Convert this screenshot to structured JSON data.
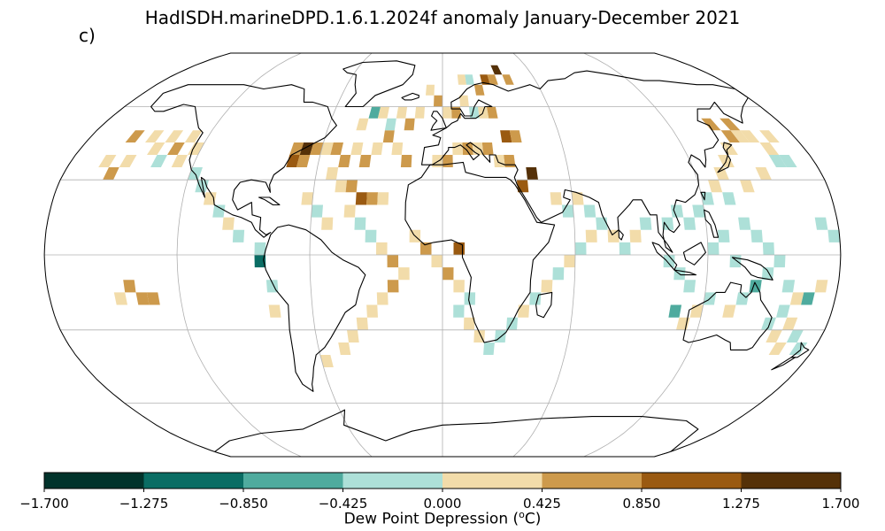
{
  "title": "HadISDH.marineDPD.1.6.1.2024f anomaly January-December 2021",
  "panel_label": "c)",
  "colorbar": {
    "label": "Dew Point Depression (",
    "label_sup": "o",
    "label_suffix": "C)",
    "ticks": [
      "−1.700",
      "−1.275",
      "−0.850",
      "−0.425",
      "0.000",
      "0.425",
      "0.850",
      "1.275",
      "1.700"
    ],
    "colors": [
      "#01332b",
      "#0a6d64",
      "#4fab9e",
      "#ade0d8",
      "#f2dcaa",
      "#cd9a4c",
      "#9a5a11",
      "#553108"
    ]
  },
  "chart_data": {
    "type": "heatmap",
    "projection": "robinson",
    "cell_size_deg": 5,
    "gridlines": {
      "lon_step": 60,
      "lat_step": 30
    },
    "color_bins": [
      -1.7,
      -1.275,
      -0.85,
      -0.425,
      0.0,
      0.425,
      0.85,
      1.275,
      1.7
    ],
    "cells": [
      [
        -160,
        45,
        0.6
      ],
      [
        -150,
        45,
        0.3
      ],
      [
        -140,
        45,
        0.3
      ],
      [
        -130,
        45,
        0.3
      ],
      [
        -125,
        40,
        0.3
      ],
      [
        -135,
        40,
        0.6
      ],
      [
        -145,
        40,
        0.3
      ],
      [
        -155,
        35,
        0.2
      ],
      [
        -165,
        35,
        0.2
      ],
      [
        -140,
        35,
        -0.2
      ],
      [
        -130,
        35,
        0.3
      ],
      [
        -120,
        30,
        -0.2
      ],
      [
        -115,
        25,
        -0.2
      ],
      [
        -110,
        20,
        0.3
      ],
      [
        -105,
        15,
        -0.2
      ],
      [
        -100,
        10,
        0.3
      ],
      [
        -95,
        5,
        -0.2
      ],
      [
        -85,
        0,
        -0.2
      ],
      [
        -85,
        -5,
        -1.2
      ],
      [
        -80,
        -15,
        -0.2
      ],
      [
        -80,
        -25,
        0.3
      ],
      [
        -145,
        -15,
        0.6
      ],
      [
        -140,
        -20,
        0.6
      ],
      [
        -135,
        -20,
        0.6
      ],
      [
        -150,
        -20,
        0.3
      ],
      [
        -160,
        30,
        0.6
      ],
      [
        -75,
        40,
        0.6
      ],
      [
        -70,
        40,
        1.3
      ],
      [
        -65,
        40,
        0.6
      ],
      [
        -75,
        35,
        1.0
      ],
      [
        -70,
        35,
        0.6
      ],
      [
        -60,
        40,
        0.3
      ],
      [
        -55,
        40,
        0.6
      ],
      [
        -50,
        35,
        0.6
      ],
      [
        -45,
        40,
        0.3
      ],
      [
        -40,
        35,
        0.6
      ],
      [
        -35,
        40,
        0.3
      ],
      [
        -30,
        45,
        0.6
      ],
      [
        -25,
        40,
        0.3
      ],
      [
        -20,
        35,
        0.6
      ],
      [
        -45,
        50,
        0.3
      ],
      [
        -40,
        55,
        -0.6
      ],
      [
        -35,
        55,
        0.3
      ],
      [
        -30,
        50,
        -0.2
      ],
      [
        -25,
        55,
        0.3
      ],
      [
        -20,
        50,
        0.6
      ],
      [
        -15,
        55,
        0.3
      ],
      [
        -55,
        30,
        0.3
      ],
      [
        -50,
        25,
        0.3
      ],
      [
        -45,
        25,
        0.6
      ],
      [
        -40,
        20,
        1.0
      ],
      [
        -35,
        20,
        0.6
      ],
      [
        -30,
        20,
        0.3
      ],
      [
        -45,
        15,
        0.3
      ],
      [
        -65,
        20,
        0.3
      ],
      [
        -60,
        15,
        -0.2
      ],
      [
        -55,
        10,
        0.3
      ],
      [
        -40,
        10,
        -0.2
      ],
      [
        -35,
        5,
        -0.2
      ],
      [
        -30,
        0,
        0.3
      ],
      [
        -25,
        -5,
        0.6
      ],
      [
        -20,
        -10,
        0.3
      ],
      [
        -25,
        -15,
        0.6
      ],
      [
        -30,
        -20,
        0.3
      ],
      [
        -35,
        -25,
        0.3
      ],
      [
        -40,
        -30,
        0.3
      ],
      [
        -45,
        -35,
        0.3
      ],
      [
        -50,
        -40,
        0.3
      ],
      [
        -60,
        -45,
        0.3
      ],
      [
        -15,
        5,
        0.3
      ],
      [
        -10,
        0,
        0.6
      ],
      [
        -5,
        -5,
        0.3
      ],
      [
        0,
        -10,
        0.6
      ],
      [
        5,
        0,
        1.2
      ],
      [
        5,
        -15,
        0.3
      ],
      [
        10,
        -20,
        -0.2
      ],
      [
        10,
        -30,
        0.3
      ],
      [
        5,
        -25,
        -0.2
      ],
      [
        15,
        -35,
        0.3
      ],
      [
        20,
        -40,
        -0.2
      ],
      [
        25,
        -35,
        -0.2
      ],
      [
        30,
        -30,
        -0.2
      ],
      [
        35,
        -25,
        0.3
      ],
      [
        40,
        -20,
        -0.2
      ],
      [
        45,
        -15,
        0.3
      ],
      [
        50,
        -10,
        -0.2
      ],
      [
        55,
        -5,
        0.3
      ],
      [
        60,
        0,
        -0.2
      ],
      [
        65,
        5,
        0.3
      ],
      [
        70,
        10,
        -0.2
      ],
      [
        75,
        5,
        0.3
      ],
      [
        80,
        0,
        -0.2
      ],
      [
        85,
        5,
        0.3
      ],
      [
        90,
        10,
        -0.2
      ],
      [
        55,
        15,
        -0.2
      ],
      [
        60,
        20,
        0.3
      ],
      [
        65,
        15,
        -0.2
      ],
      [
        50,
        20,
        0.3
      ],
      [
        40,
        30,
        1.6
      ],
      [
        35,
        25,
        1.2
      ],
      [
        30,
        35,
        0.6
      ],
      [
        25,
        35,
        0.3
      ],
      [
        20,
        40,
        0.6
      ],
      [
        15,
        40,
        0.3
      ],
      [
        10,
        40,
        0.6
      ],
      [
        5,
        40,
        0.3
      ],
      [
        0,
        35,
        0.6
      ],
      [
        -5,
        35,
        0.3
      ],
      [
        30,
        45,
        1.0
      ],
      [
        35,
        45,
        0.6
      ],
      [
        25,
        55,
        0.6
      ],
      [
        20,
        55,
        0.3
      ],
      [
        15,
        55,
        -0.2
      ],
      [
        5,
        55,
        0.6
      ],
      [
        0,
        55,
        0.3
      ],
      [
        10,
        60,
        0.3
      ],
      [
        20,
        65,
        0.6
      ],
      [
        25,
        70,
        1.0
      ],
      [
        30,
        70,
        0.6
      ],
      [
        15,
        70,
        -0.2
      ],
      [
        10,
        70,
        0.3
      ],
      [
        -10,
        65,
        0.3
      ],
      [
        -5,
        60,
        0.6
      ],
      [
        35,
        75,
        1.6
      ],
      [
        40,
        70,
        0.6
      ],
      [
        100,
        10,
        -0.2
      ],
      [
        105,
        15,
        -0.2
      ],
      [
        110,
        10,
        -0.2
      ],
      [
        115,
        15,
        -0.2
      ],
      [
        120,
        20,
        -0.2
      ],
      [
        125,
        25,
        0.3
      ],
      [
        130,
        30,
        0.3
      ],
      [
        135,
        35,
        0.3
      ],
      [
        140,
        40,
        0.3
      ],
      [
        145,
        45,
        0.6
      ],
      [
        150,
        45,
        0.3
      ],
      [
        155,
        45,
        0.3
      ],
      [
        160,
        40,
        0.3
      ],
      [
        165,
        45,
        0.3
      ],
      [
        150,
        50,
        0.6
      ],
      [
        140,
        50,
        0.6
      ],
      [
        160,
        35,
        -0.2
      ],
      [
        165,
        35,
        -0.2
      ],
      [
        150,
        30,
        0.3
      ],
      [
        140,
        25,
        0.3
      ],
      [
        130,
        20,
        -0.2
      ],
      [
        135,
        10,
        -0.2
      ],
      [
        140,
        5,
        -0.2
      ],
      [
        145,
        0,
        -0.2
      ],
      [
        150,
        -5,
        -0.2
      ],
      [
        145,
        -10,
        -0.2
      ],
      [
        140,
        -15,
        -0.6
      ],
      [
        135,
        -20,
        -0.2
      ],
      [
        130,
        -25,
        0.3
      ],
      [
        120,
        -20,
        -0.2
      ],
      [
        115,
        -25,
        0.3
      ],
      [
        110,
        -15,
        -0.2
      ],
      [
        105,
        -10,
        -0.2
      ],
      [
        100,
        -5,
        -0.2
      ],
      [
        120,
        0,
        -0.2
      ],
      [
        125,
        5,
        -0.2
      ],
      [
        130,
        -5,
        -0.2
      ],
      [
        155,
        -15,
        -0.2
      ],
      [
        160,
        -20,
        0.3
      ],
      [
        155,
        -25,
        -0.2
      ],
      [
        150,
        -30,
        -0.2
      ],
      [
        160,
        -30,
        0.3
      ],
      [
        165,
        -35,
        -0.2
      ],
      [
        160,
        -40,
        0.3
      ],
      [
        170,
        -40,
        -0.2
      ],
      [
        155,
        -35,
        0.3
      ],
      [
        165,
        -20,
        -0.6
      ],
      [
        170,
        -15,
        0.3
      ],
      [
        170,
        10,
        -0.2
      ],
      [
        175,
        5,
        -0.2
      ],
      [
        110,
        -30,
        0.3
      ],
      [
        105,
        -25,
        -0.6
      ]
    ]
  }
}
